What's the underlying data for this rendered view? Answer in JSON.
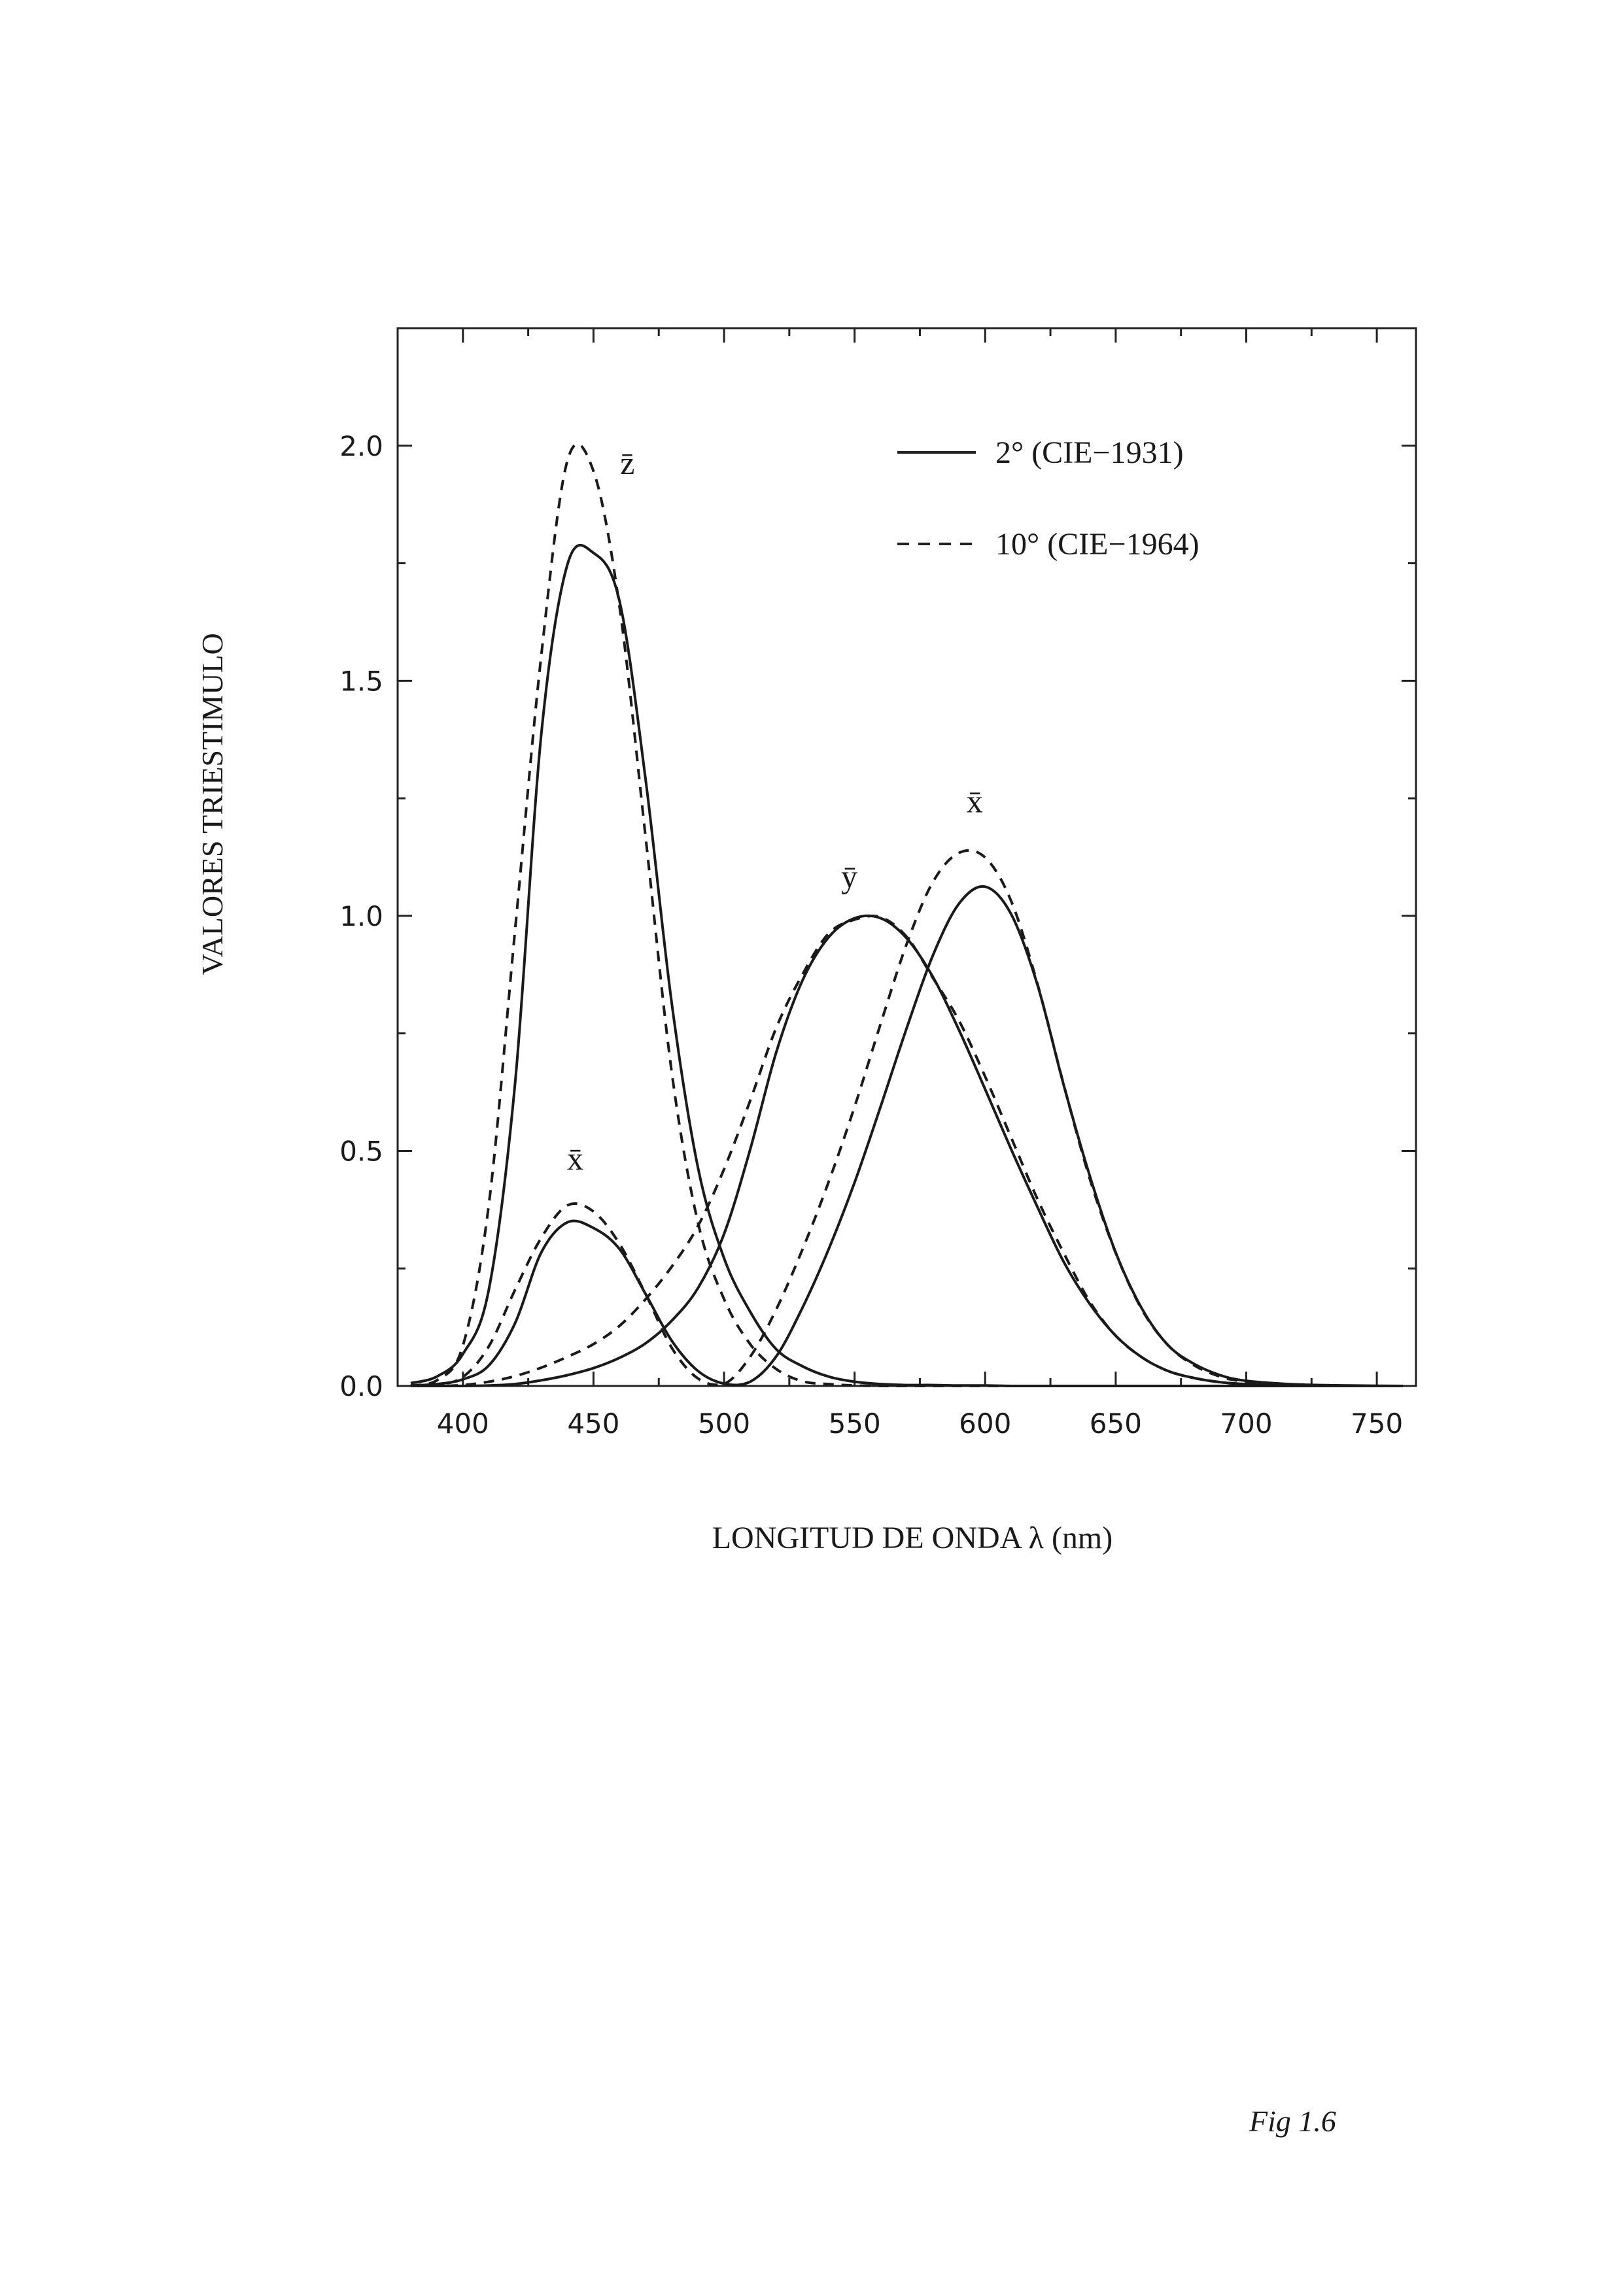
{
  "chart_data": {
    "type": "line",
    "xlabel": "LONGITUD DE ONDA λ (nm)",
    "ylabel": "VALORES TRIESTIMULO",
    "xlim": [
      375,
      765
    ],
    "ylim": [
      0.0,
      2.25
    ],
    "x_ticks": [
      400,
      450,
      500,
      550,
      600,
      650,
      700,
      750
    ],
    "x_tick_labels": [
      "400",
      "450",
      "500",
      "550",
      "600",
      "650",
      "700",
      "750"
    ],
    "y_ticks": [
      0.0,
      0.5,
      1.0,
      1.5,
      2.0
    ],
    "y_tick_labels": [
      "0.0",
      "0.5",
      "1.0",
      "1.5",
      "2.0"
    ],
    "grid": false,
    "legend_position": "top-right",
    "legend": [
      {
        "label": "2° (CIE−1931)",
        "style": "solid"
      },
      {
        "label": "10° (CIE−1964)",
        "style": "dashed"
      }
    ],
    "annotations": [
      {
        "text": "z̄",
        "x": 463,
        "y": 1.94
      },
      {
        "text": "x̄",
        "x": 443,
        "y": 0.46
      },
      {
        "text": "ȳ",
        "x": 548,
        "y": 1.06
      },
      {
        "text": "x̄",
        "x": 596,
        "y": 1.22
      }
    ],
    "x": [
      380,
      390,
      400,
      410,
      420,
      430,
      440,
      450,
      460,
      470,
      480,
      490,
      500,
      510,
      520,
      530,
      540,
      550,
      560,
      570,
      580,
      590,
      600,
      610,
      620,
      630,
      640,
      650,
      660,
      670,
      680,
      690,
      700,
      720,
      740,
      760
    ],
    "series": [
      {
        "name": "2° (CIE−1931)",
        "style": "solid",
        "component": "x̄",
        "values": [
          0.001,
          0.004,
          0.014,
          0.044,
          0.134,
          0.284,
          0.348,
          0.336,
          0.291,
          0.195,
          0.096,
          0.032,
          0.005,
          0.009,
          0.063,
          0.166,
          0.29,
          0.433,
          0.595,
          0.762,
          0.916,
          1.026,
          1.062,
          1.003,
          0.854,
          0.642,
          0.448,
          0.284,
          0.165,
          0.087,
          0.047,
          0.023,
          0.011,
          0.003,
          0.001,
          0.0
        ]
      },
      {
        "name": "2° (CIE−1931)",
        "style": "solid",
        "component": "ȳ",
        "values": [
          0.0,
          0.0,
          0.0,
          0.001,
          0.004,
          0.012,
          0.023,
          0.038,
          0.06,
          0.091,
          0.139,
          0.208,
          0.323,
          0.503,
          0.71,
          0.862,
          0.954,
          0.995,
          0.995,
          0.952,
          0.87,
          0.757,
          0.631,
          0.503,
          0.381,
          0.265,
          0.175,
          0.107,
          0.061,
          0.032,
          0.017,
          0.008,
          0.004,
          0.001,
          0.0,
          0.0
        ]
      },
      {
        "name": "2° (CIE−1931)",
        "style": "solid",
        "component": "z̄",
        "values": [
          0.006,
          0.02,
          0.068,
          0.207,
          0.646,
          1.386,
          1.747,
          1.772,
          1.669,
          1.288,
          0.813,
          0.465,
          0.272,
          0.158,
          0.078,
          0.042,
          0.02,
          0.009,
          0.004,
          0.002,
          0.002,
          0.001,
          0.001,
          0.0,
          0.0,
          0.0,
          0.0,
          0.0,
          0.0,
          0.0,
          0.0,
          0.0,
          0.0,
          0.0,
          0.0,
          0.0
        ]
      },
      {
        "name": "10° (CIE−1964)",
        "style": "dashed",
        "component": "x̄",
        "values": [
          0.0,
          0.003,
          0.019,
          0.085,
          0.205,
          0.315,
          0.384,
          0.371,
          0.302,
          0.195,
          0.081,
          0.016,
          0.004,
          0.062,
          0.163,
          0.29,
          0.433,
          0.594,
          0.771,
          0.941,
          1.072,
          1.134,
          1.124,
          1.031,
          0.856,
          0.643,
          0.442,
          0.283,
          0.163,
          0.087,
          0.044,
          0.02,
          0.009,
          0.002,
          0.0,
          0.0
        ]
      },
      {
        "name": "10° (CIE−1964)",
        "style": "dashed",
        "component": "ȳ",
        "values": [
          0.0,
          0.0,
          0.002,
          0.009,
          0.021,
          0.039,
          0.062,
          0.089,
          0.128,
          0.185,
          0.254,
          0.34,
          0.461,
          0.607,
          0.762,
          0.875,
          0.962,
          0.992,
          0.997,
          0.955,
          0.868,
          0.777,
          0.658,
          0.528,
          0.398,
          0.284,
          0.18,
          0.107,
          0.061,
          0.032,
          0.017,
          0.008,
          0.004,
          0.001,
          0.0,
          0.0
        ]
      },
      {
        "name": "10° (CIE−1964)",
        "style": "dashed",
        "component": "z̄",
        "values": [
          0.001,
          0.012,
          0.086,
          0.389,
          0.972,
          1.554,
          1.968,
          1.946,
          1.657,
          1.165,
          0.666,
          0.348,
          0.185,
          0.089,
          0.036,
          0.01,
          0.004,
          0.001,
          0.0,
          0.0,
          0.0,
          0.0,
          0.0,
          0.0,
          0.0,
          0.0,
          0.0,
          0.0,
          0.0,
          0.0,
          0.0,
          0.0,
          0.0,
          0.0,
          0.0,
          0.0
        ]
      }
    ]
  },
  "page_note": "Fig 1.6"
}
